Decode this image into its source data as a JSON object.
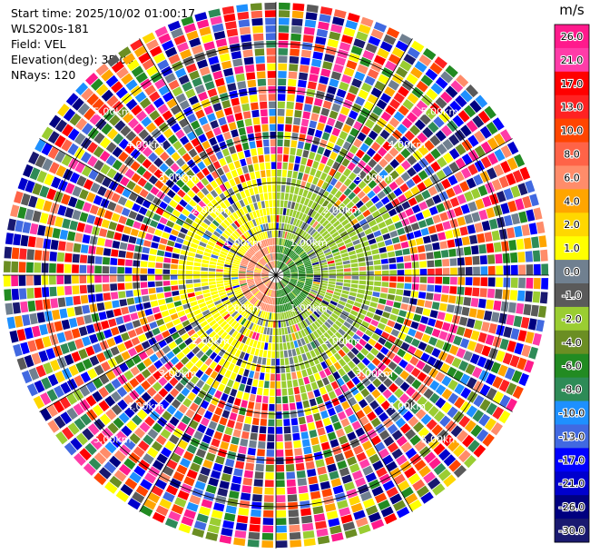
{
  "info": {
    "start_time": "Start time: 2025/10/02 01:00:17",
    "site": "WLS200s-181",
    "field": "Field: VEL",
    "elevation": "Elevation(deg): 35.00",
    "nrays": "NRays: 120"
  },
  "chart_data": {
    "type": "heatmap",
    "projection": "polar-ppi",
    "field": "VEL",
    "unit": "m/s",
    "n_rays": 120,
    "elevation_deg": 35.0,
    "range_rings_km": [
      1,
      2,
      3,
      4,
      5
    ],
    "ring_labels": [
      "1.00km",
      "2.00km",
      "3.00km",
      "4.00km",
      "5.00km"
    ],
    "max_range_km": 5.9,
    "colorbar": {
      "label": "m/s",
      "ticks": [
        "26.0",
        "21.0",
        "17.0",
        "13.0",
        "10.0",
        "8.0",
        "6.0",
        "4.0",
        "2.0",
        "1.0",
        "0.0",
        "-1.0",
        "-2.0",
        "-4.0",
        "-6.0",
        "-8.0",
        "-10.0",
        "-13.0",
        "-17.0",
        "-21.0",
        "-26.0",
        "-30.0"
      ],
      "colors": [
        "#ff1a8c",
        "#ff3ca8",
        "#ff0000",
        "#ff2222",
        "#ff4500",
        "#ff6347",
        "#ff8c6a",
        "#ffa500",
        "#ffd700",
        "#ffff00",
        "#708090",
        "#5a5a5a",
        "#9acd32",
        "#6b8e23",
        "#228b22",
        "#2e8b57",
        "#1e90ff",
        "#4169e1",
        "#0000ff",
        "#0000cd",
        "#000080",
        "#191970"
      ]
    },
    "patterns": {
      "inner_west_km": 1.2,
      "inner_west_value": 2.0,
      "inner_east_value": -2.0,
      "core_west_value": 6.0,
      "core_east_value": -6.0,
      "noise_start_km": 2.2
    }
  }
}
